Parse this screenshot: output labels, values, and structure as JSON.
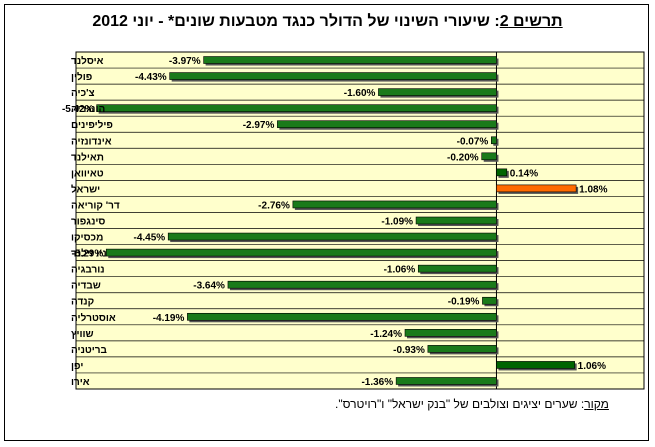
{
  "title": {
    "lead": "תרשים 2",
    "rest": ": שיעורי השינוי של הדולר כנגד מטבעות שונים* - יוני 2012"
  },
  "source": {
    "lead": "מקור",
    "rest": ": שערים יציגים וצולבים של \"בנק ישראל\" ו\"רויטרס\"."
  },
  "colors": {
    "positive_dark": "#006400",
    "negative": "#1a7a1a",
    "highlight": "#ff6a00",
    "plot_bg": "#ffffcc",
    "gridline": "#000000"
  },
  "chart_data": {
    "type": "bar",
    "orientation": "horizontal",
    "value_format": "percent",
    "categories": [
      "איסלנד",
      "פולין",
      "צ'כיה",
      "הונגריה",
      "פיליפינים",
      "אינדונזיה",
      "תאילנד",
      "טאיוואן",
      "ישראל",
      "דר' קוריאה",
      "סינגפור",
      "מכסיקו",
      "ניו זילנד",
      "נורבגיה",
      "שבדיה",
      "קנדה",
      "אוסטרליה",
      "שוויץ",
      "בריטניה",
      "יפן",
      "אירו"
    ],
    "values": [
      -3.97,
      -4.43,
      -1.6,
      -5.42,
      -2.97,
      -0.07,
      -0.2,
      0.14,
      1.08,
      -2.76,
      -1.09,
      -4.45,
      -5.29,
      -1.06,
      -3.64,
      -0.19,
      -4.19,
      -1.24,
      -0.93,
      1.06,
      -1.36
    ],
    "data_labels": [
      "-3.97%",
      "-4.43%",
      "-1.60%",
      "-5.42%",
      "-2.97%",
      "-0.07%",
      "-0.20%",
      "0.14%",
      "1.08%",
      "-2.76%",
      "-1.09%",
      "-4.45%",
      "-5.29%",
      "-1.06%",
      "-3.64%",
      "-0.19%",
      "-4.19%",
      "-1.24%",
      "-0.93%",
      "1.06%",
      "-1.36%"
    ],
    "highlight_category": "ישראל",
    "xlim": [
      -5.7,
      2.0
    ],
    "grid": "horizontal gridlines between categories",
    "legend": "none"
  }
}
